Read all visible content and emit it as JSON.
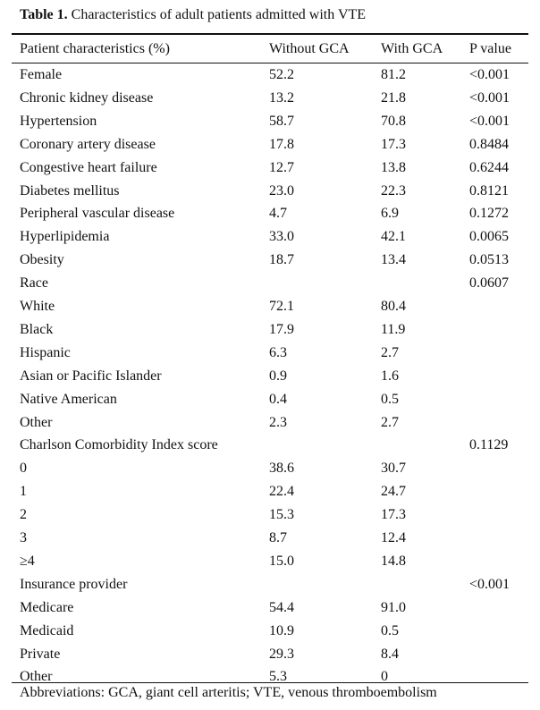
{
  "title": {
    "label": "Table 1.",
    "text": " Characteristics of adult patients admitted with VTE"
  },
  "headers": [
    "Patient characteristics (%)",
    "Without GCA",
    "With GCA",
    "P value"
  ],
  "rows": [
    [
      "Female",
      "52.2",
      "81.2",
      "<0.001"
    ],
    [
      "Chronic kidney disease",
      "13.2",
      "21.8",
      "<0.001"
    ],
    [
      "Hypertension",
      "58.7",
      "70.8",
      "<0.001"
    ],
    [
      "Coronary artery disease",
      "17.8",
      "17.3",
      "0.8484"
    ],
    [
      "Congestive heart failure",
      "12.7",
      "13.8",
      "0.6244"
    ],
    [
      "Diabetes mellitus",
      "23.0",
      "22.3",
      "0.8121"
    ],
    [
      "Peripheral vascular disease",
      "4.7",
      "6.9",
      "0.1272"
    ],
    [
      "Hyperlipidemia",
      "33.0",
      "42.1",
      "0.0065"
    ],
    [
      "Obesity",
      "18.7",
      "13.4",
      "0.0513"
    ],
    [
      "Race",
      "",
      "",
      "0.0607"
    ],
    [
      "White",
      "72.1",
      "80.4",
      ""
    ],
    [
      "Black",
      "17.9",
      "11.9",
      ""
    ],
    [
      "Hispanic",
      "6.3",
      "2.7",
      ""
    ],
    [
      "Asian or Pacific Islander",
      "0.9",
      "1.6",
      ""
    ],
    [
      "Native American",
      "0.4",
      "0.5",
      ""
    ],
    [
      "Other",
      "2.3",
      "2.7",
      ""
    ],
    [
      "Charlson Comorbidity Index score",
      "",
      "",
      "0.1129"
    ],
    [
      "0",
      "38.6",
      "30.7",
      ""
    ],
    [
      "1",
      "22.4",
      "24.7",
      ""
    ],
    [
      "2",
      "15.3",
      "17.3",
      ""
    ],
    [
      "3",
      "8.7",
      "12.4",
      ""
    ],
    [
      "≥4",
      "15.0",
      "14.8",
      ""
    ],
    [
      "Insurance provider",
      "",
      "",
      "<0.001"
    ],
    [
      "Medicare",
      "54.4",
      "91.0",
      ""
    ],
    [
      "Medicaid",
      "10.9",
      "0.5",
      ""
    ],
    [
      "Private",
      "29.3",
      "8.4",
      ""
    ],
    [
      "Other",
      "5.3",
      "0",
      ""
    ]
  ],
  "footnote": "Abbreviations: GCA, giant cell arteritis; VTE, venous thromboembolism"
}
